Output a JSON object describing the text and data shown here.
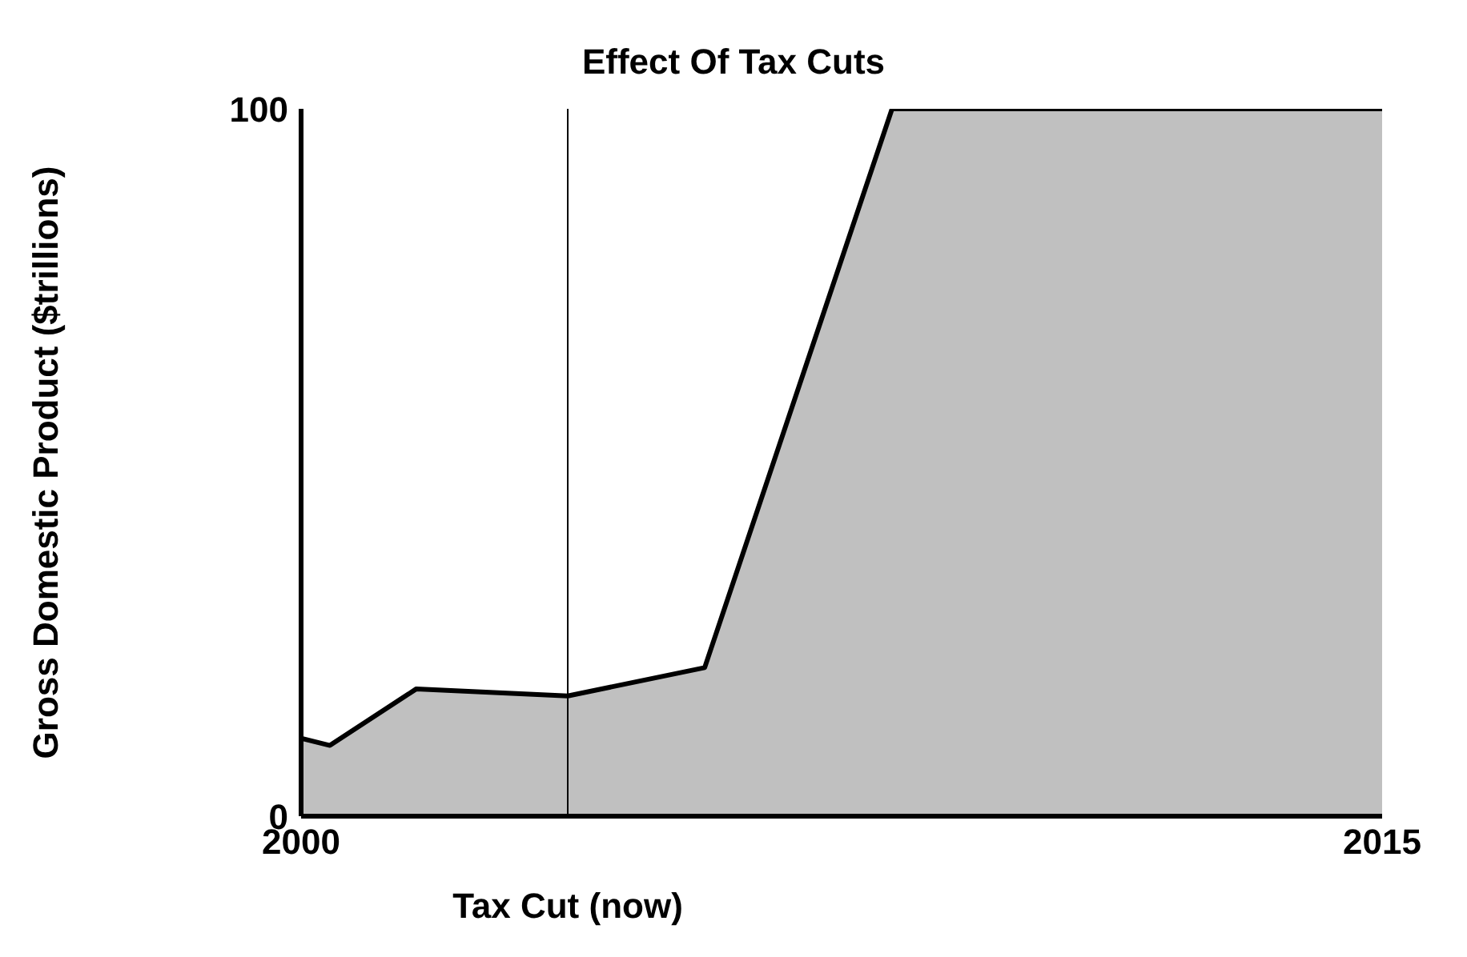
{
  "chart_data": {
    "type": "area",
    "title": "Effect Of Tax Cuts",
    "ylabel": "Gross Domestic Product ($trillions)",
    "x": [
      2000,
      2000.4,
      2001.6,
      2003.7,
      2005.6,
      2008.2,
      2015
    ],
    "series": [
      {
        "color": "#c0c0c0",
        "values": [
          11,
          10,
          18,
          17,
          21,
          100,
          100
        ]
      }
    ],
    "xlim": [
      2000,
      2015
    ],
    "xticks": [
      2000,
      2015
    ],
    "ylim": [
      0,
      100
    ],
    "yticks": [
      0,
      100
    ],
    "ref_lines": [
      {
        "axis": "x",
        "value": 2003.7,
        "label": "Tax Cut (now)",
        "color": "#000000"
      }
    ],
    "grid": false,
    "legend": false
  }
}
